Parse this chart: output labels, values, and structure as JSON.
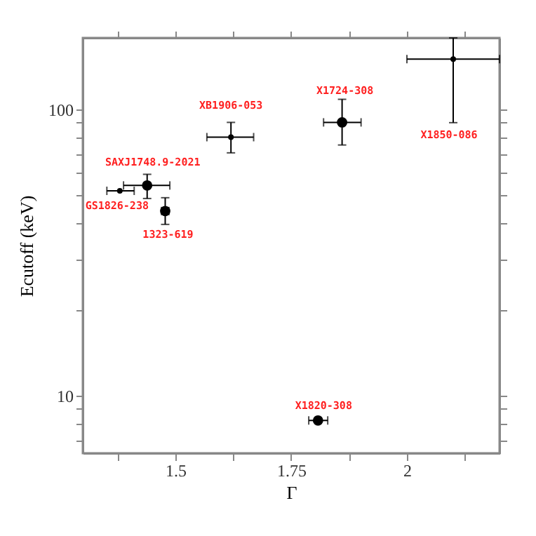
{
  "chart_data": {
    "type": "scatter",
    "xlabel": "Γ",
    "ylabel": "Ecutoff (keV)",
    "log": "y",
    "grid": false,
    "xlim": [
      1.3,
      2.2
    ],
    "ylim": [
      6.3,
      178
    ],
    "xticks": [
      {
        "value": 1.375,
        "label": null
      },
      1.5,
      {
        "value": 1.625,
        "label": null
      },
      1.75,
      {
        "value": 1.875,
        "label": null
      },
      2,
      {
        "value": 2.125,
        "label": null
      }
    ],
    "yticks": [
      {
        "value": 7,
        "label": null
      },
      {
        "value": 8,
        "label": null
      },
      {
        "value": 9,
        "label": null
      },
      10,
      {
        "value": 20,
        "label": null
      },
      {
        "value": 30,
        "label": null
      },
      {
        "value": 40,
        "label": null
      },
      {
        "value": 50,
        "label": null
      },
      {
        "value": 60,
        "label": null
      },
      {
        "value": 70,
        "label": null
      },
      {
        "value": 80,
        "label": null
      },
      {
        "value": 90,
        "label": null
      },
      100
    ],
    "series": [
      {
        "color": "#000000",
        "marker": "circle",
        "x": [
          1.439,
          1.478,
          1.86,
          1.808
        ],
        "values": [
          54.3,
          44.2,
          90.2,
          8.2
        ],
        "errors": [
          [
            48.9,
            59.4
          ],
          [
            39.7,
            49.2
          ],
          [
            75.2,
            108.6
          ],
          null
        ],
        "xerrors": [
          [
            1.388,
            1.488
          ],
          [
            1.47,
            1.486
          ],
          [
            1.82,
            1.901
          ],
          [
            1.788,
            1.829
          ]
        ]
      },
      {
        "color": "#000000",
        "marker": "circle",
        "x": [
          1.62,
          1.38,
          2.1
        ],
        "values": [
          80.1,
          52,
          150
        ],
        "errors": [
          [
            70.6,
            90.2
          ],
          null,
          [
            90,
            178
          ]
        ],
        "xerrors": [
          [
            1.568,
            1.669
          ],
          [
            1.352,
            1.411
          ],
          [
            2.0,
            2.2
          ]
        ]
      }
    ],
    "annotations": [
      {
        "text": "XB1906-053",
        "x": 1.62,
        "y": 80.1
      },
      {
        "text": "X1724-308",
        "x": 1.86,
        "y": 90.2
      },
      {
        "text": "X1850-086",
        "x": 2.1,
        "y": 90
      },
      {
        "text": "SAXJ1748.9-2021",
        "x": 1.439,
        "y": 54.3
      },
      {
        "text": "GS1826-238",
        "x": 1.38,
        "y": 52
      },
      {
        "text": "1323-619",
        "x": 1.478,
        "y": 44.2
      },
      {
        "text": "X1820-308",
        "x": 1.808,
        "y": 8.2
      }
    ]
  }
}
